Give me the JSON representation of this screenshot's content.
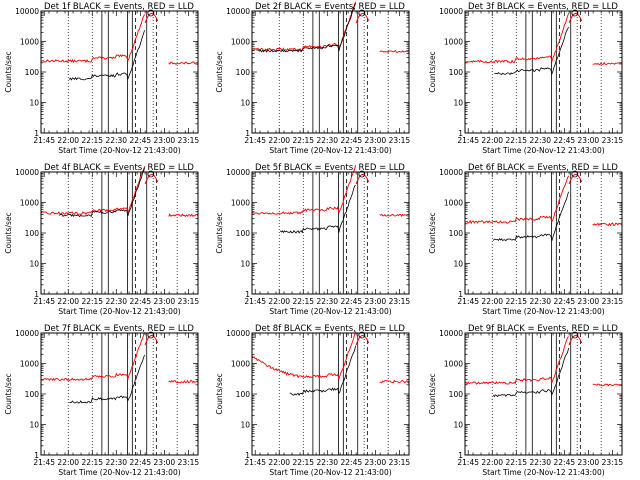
{
  "chart_data": {
    "type": "line",
    "layout": "3x3 grid",
    "y_scale": "log",
    "ylim": [
      1,
      10000
    ],
    "ylabel": "Counts/sec",
    "xlabel": "Start Time (20-Nov-12 21:43:00)",
    "xlim": [
      "21:43",
      "23:21"
    ],
    "x_tick_labels": [
      "21:45",
      "22:00",
      "22:15",
      "22:30",
      "22:45",
      "23:00",
      "23:15"
    ],
    "y_tick_labels": [
      "1",
      "10",
      "100",
      "1000",
      "10000"
    ],
    "series_colors": {
      "events": "#000000",
      "lld": "#ff0000"
    },
    "vertical_lines": {
      "dotted": [
        "22:00",
        "22:15",
        "22:53",
        "23:08"
      ],
      "solid": [
        "22:21",
        "22:25",
        "22:37",
        "22:40",
        "22:49"
      ],
      "dashed": [
        "22:42",
        "22:55"
      ]
    },
    "panels": [
      {
        "title": "Det 1f BLACK = Events, RED = LLD",
        "events_base": 60,
        "lld_base": 230,
        "events_start": 22.0
      },
      {
        "title": "Det 2f BLACK = Events, RED = LLD",
        "events_base": 500,
        "lld_base": 550,
        "events_start": 21.75
      },
      {
        "title": "Det 3f BLACK = Events, RED = LLD",
        "events_base": 90,
        "lld_base": 220,
        "events_start": 22.02
      },
      {
        "title": "Det 4f BLACK = Events, RED = LLD",
        "events_base": 380,
        "lld_base": 450,
        "events_start": 21.9
      },
      {
        "title": "Det 5f BLACK = Events, RED = LLD",
        "events_base": 110,
        "lld_base": 450,
        "events_start": 22.0
      },
      {
        "title": "Det 6f BLACK = Events, RED = LLD",
        "events_base": 60,
        "lld_base": 230,
        "events_start": 22.0
      },
      {
        "title": "Det 7f BLACK = Events, RED = LLD",
        "events_base": 55,
        "lld_base": 300,
        "events_start": 22.0
      },
      {
        "title": "Det 8f BLACK = Events, RED = LLD",
        "events_base": 100,
        "lld_base": 300,
        "events_start": 22.1
      },
      {
        "title": "Det 9f BLACK = Events, RED = LLD",
        "events_base": 90,
        "lld_base": 230,
        "events_start": 22.0
      }
    ]
  }
}
